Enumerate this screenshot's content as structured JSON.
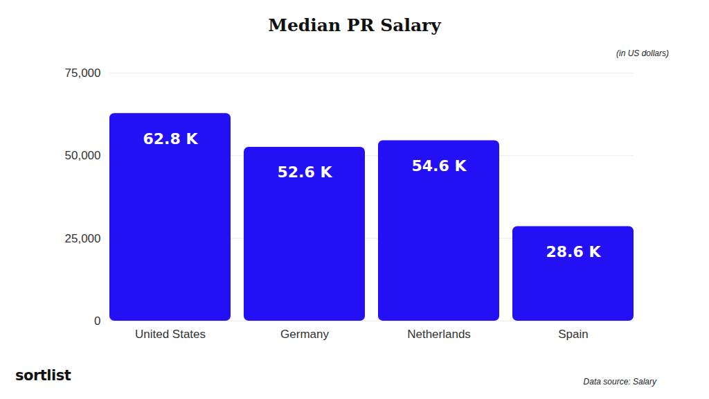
{
  "chart_data": {
    "type": "bar",
    "title": "Median PR Salary",
    "subtitle": "(in US dollars)",
    "categories": [
      "United States",
      "Germany",
      "Netherlands",
      "Spain"
    ],
    "values": [
      62800,
      52600,
      54600,
      28600
    ],
    "value_labels": [
      "62.8 K",
      "52.6 K",
      "54.6 K",
      "28.6 K"
    ],
    "color": "#2410f5",
    "ylim": [
      0,
      75000
    ],
    "yticks": [
      0,
      {
        "value": 25000,
        "label": "25,000"
      },
      {
        "value": 50000,
        "label": "50,000"
      },
      {
        "value": 75000,
        "label": "75,000"
      }
    ],
    "grid": true,
    "data_labels": true,
    "logo": "sortlist",
    "source": "Data source: Salary"
  }
}
